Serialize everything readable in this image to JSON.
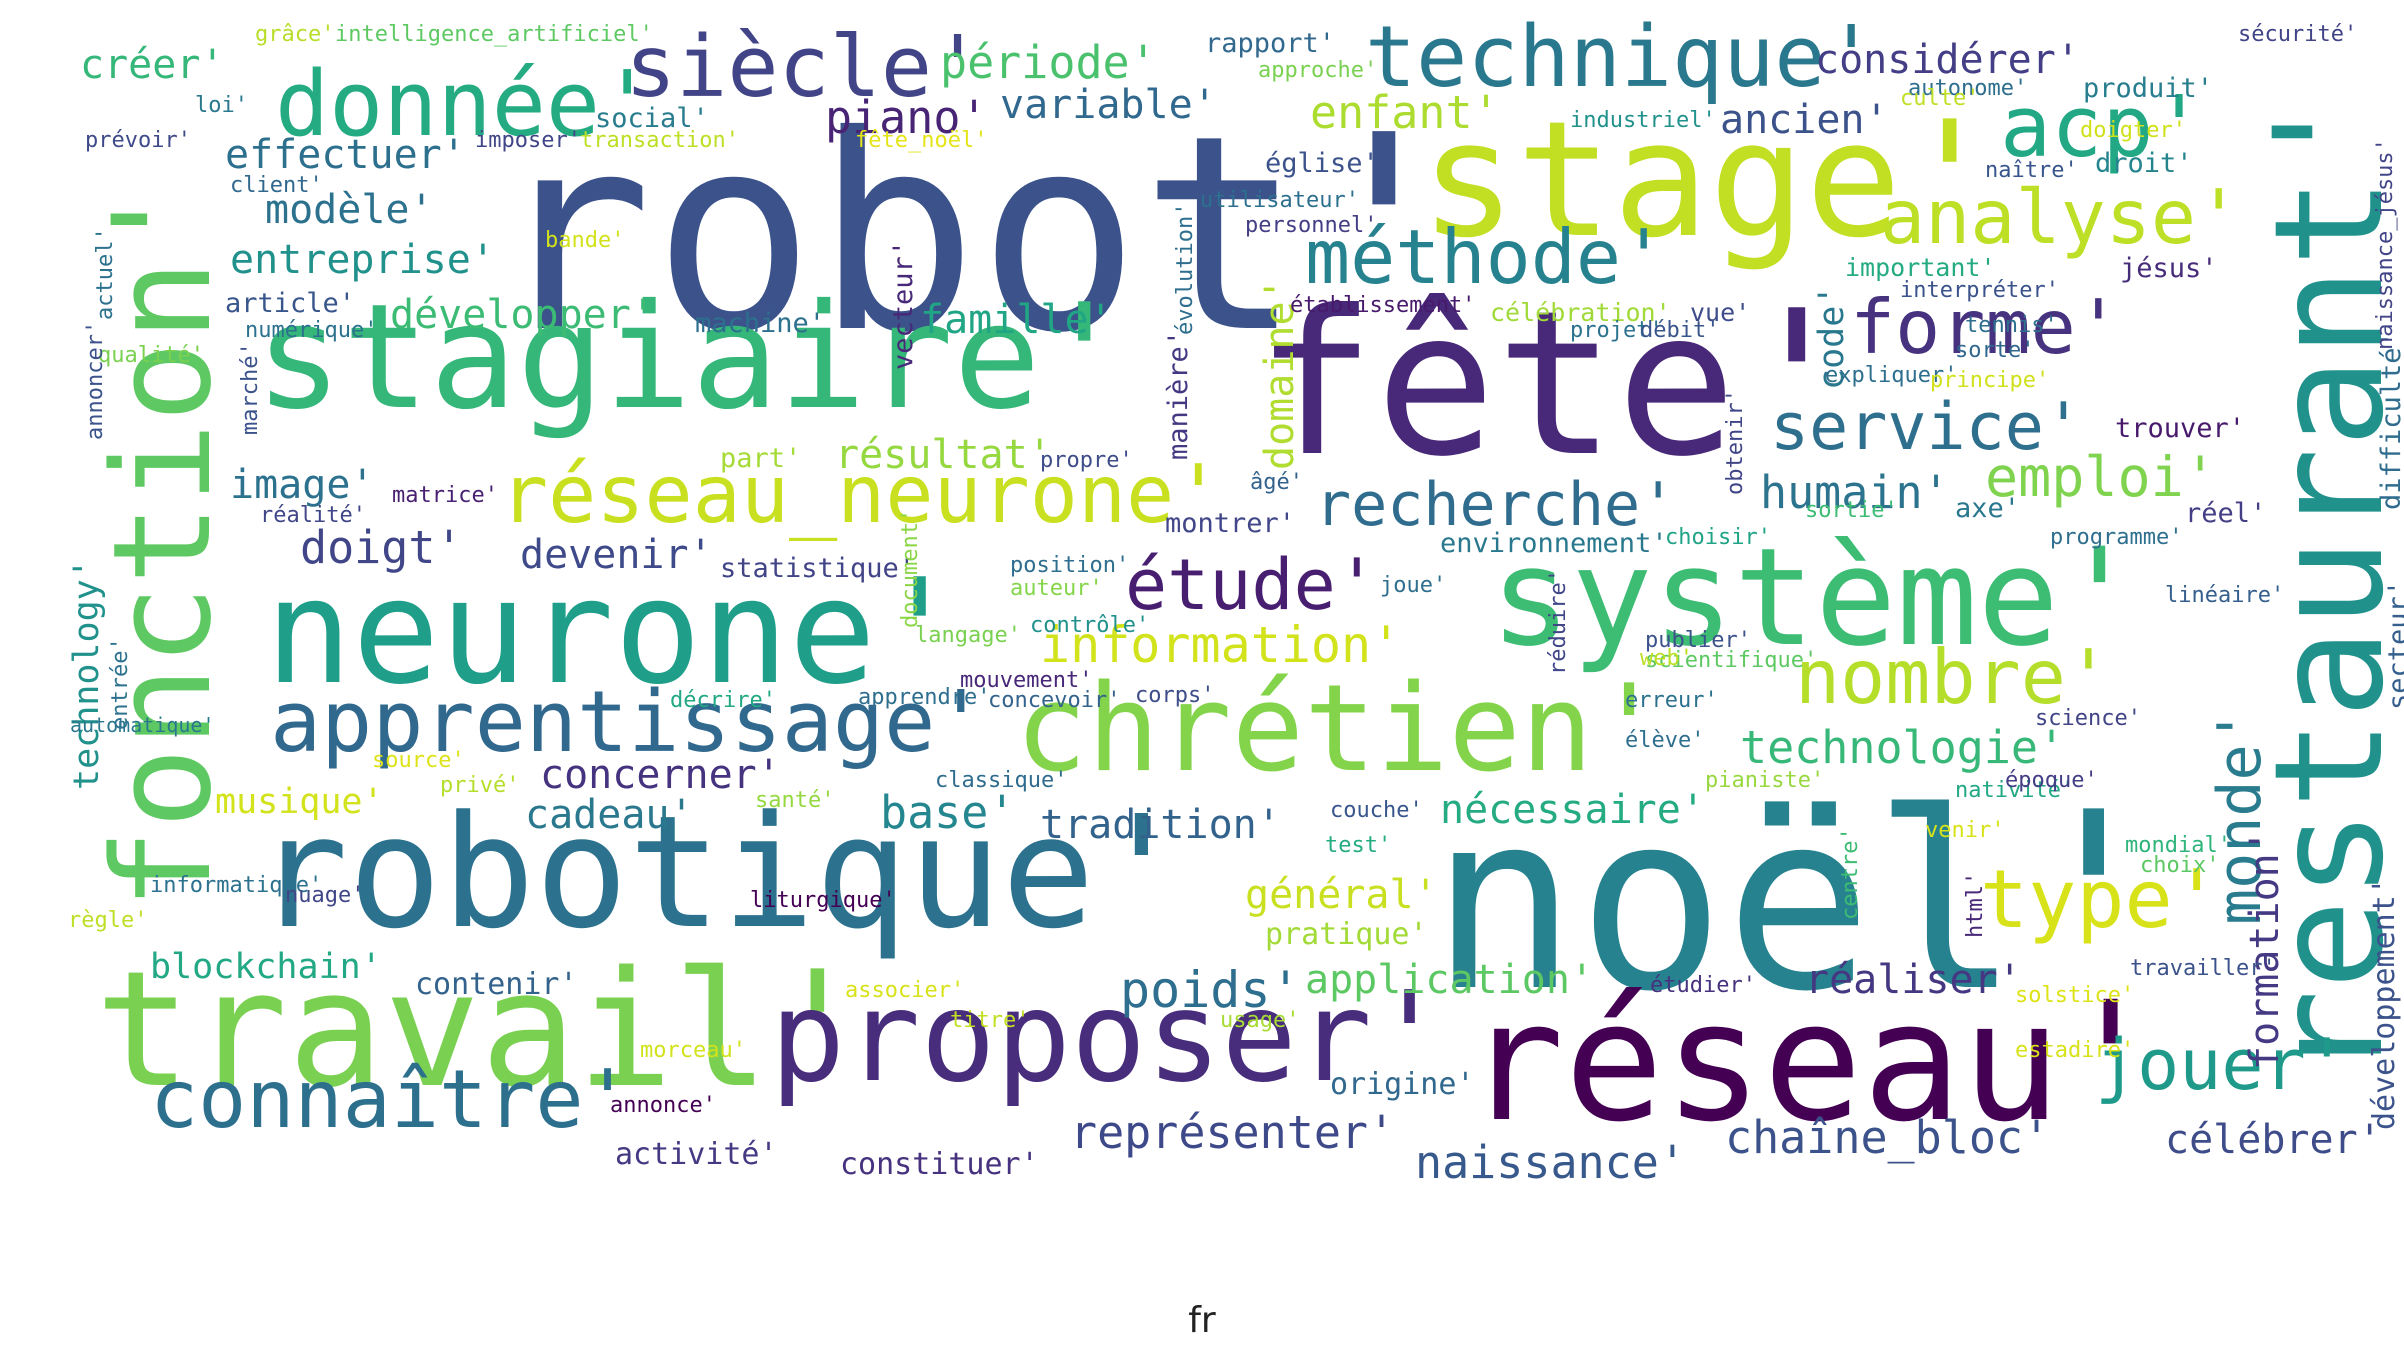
{
  "caption": "fr",
  "words": [
    {
      "text": "robot'",
      "color": "#3b528b"
    },
    {
      "text": "stage'",
      "color": "#c2df23"
    },
    {
      "text": "restaurant'",
      "color": "#21918c"
    },
    {
      "text": "fonction'",
      "color": "#5ec962"
    },
    {
      "text": "stagiaire'",
      "color": "#35b779"
    },
    {
      "text": "fête'",
      "color": "#482878"
    },
    {
      "text": "neurone'",
      "color": "#1f9e89"
    },
    {
      "text": "système'",
      "color": "#3dbc74"
    },
    {
      "text": "robotique'",
      "color": "#2c728e"
    },
    {
      "text": "noël'",
      "color": "#26828e"
    },
    {
      "text": "travail'",
      "color": "#7ad151"
    },
    {
      "text": "réseau'",
      "color": "#440154"
    },
    {
      "text": "proposer'",
      "color": "#472d7b"
    },
    {
      "text": "chrétien'",
      "color": "#84d44b"
    },
    {
      "text": "apprentissage'",
      "color": "#31688e"
    },
    {
      "text": "réseau_neurone'",
      "color": "#c8e020"
    },
    {
      "text": "donnée'",
      "color": "#25ab82"
    },
    {
      "text": "siècle'",
      "color": "#414487"
    },
    {
      "text": "technique'",
      "color": "#2a788e"
    },
    {
      "text": "acp'",
      "color": "#22a884"
    },
    {
      "text": "analyse'",
      "color": "#bddf26"
    },
    {
      "text": "méthode'",
      "color": "#26828e"
    },
    {
      "text": "forme'",
      "color": "#46327e"
    },
    {
      "text": "service'",
      "color": "#2e6f8e"
    },
    {
      "text": "recherche'",
      "color": "#2f6c8e"
    },
    {
      "text": "étude'",
      "color": "#481f70"
    },
    {
      "text": "emploi'",
      "color": "#7fd34e"
    },
    {
      "text": "humain'",
      "color": "#2c738e"
    },
    {
      "text": "nombre'",
      "color": "#b5de2b"
    },
    {
      "text": "technologie'",
      "color": "#37b878"
    },
    {
      "text": "information'",
      "color": "#d2e21b"
    },
    {
      "text": "monde'",
      "color": "#297b8e"
    },
    {
      "text": "type'",
      "color": "#d8e219"
    },
    {
      "text": "jouer'",
      "color": "#1f9a8a"
    },
    {
      "text": "connaître'",
      "color": "#2d708e"
    },
    {
      "text": "représenter'",
      "color": "#3e4989"
    },
    {
      "text": "naissance'",
      "color": "#38598c"
    },
    {
      "text": "chaîne_bloc'",
      "color": "#3b528b"
    },
    {
      "text": "célébrer'",
      "color": "#3e4c8a"
    },
    {
      "text": "poids'",
      "color": "#2e6e8e"
    },
    {
      "text": "application'",
      "color": "#5cc863"
    },
    {
      "text": "réaliser'",
      "color": "#453781"
    },
    {
      "text": "formation'",
      "color": "#443983"
    },
    {
      "text": "développement'",
      "color": "#3b528b"
    },
    {
      "text": "domaine'",
      "color": "#b0dd2f"
    },
    {
      "text": "code'",
      "color": "#2a788e"
    },
    {
      "text": "créer'",
      "color": "#35b779"
    },
    {
      "text": "piano'",
      "color": "#482475"
    },
    {
      "text": "période'",
      "color": "#4ac16d"
    },
    {
      "text": "variable'",
      "color": "#31688e"
    },
    {
      "text": "considérer'",
      "color": "#433e85"
    },
    {
      "text": "enfant'",
      "color": "#addc30"
    },
    {
      "text": "ancien'",
      "color": "#3b528b"
    },
    {
      "text": "effectuer'",
      "color": "#2d708e"
    },
    {
      "text": "modèle'",
      "color": "#2c728e"
    },
    {
      "text": "entreprise'",
      "color": "#21918c"
    },
    {
      "text": "développer'",
      "color": "#3cbb75"
    },
    {
      "text": "famille'",
      "color": "#21a685"
    },
    {
      "text": "image'",
      "color": "#2c728e"
    },
    {
      "text": "résultat'",
      "color": "#95d840"
    },
    {
      "text": "doigt'",
      "color": "#404688"
    },
    {
      "text": "devenir'",
      "color": "#3e4a89"
    },
    {
      "text": "musique'",
      "color": "#d2e21b"
    },
    {
      "text": "concerner'",
      "color": "#46337f"
    },
    {
      "text": "cadeau'",
      "color": "#2a788e"
    },
    {
      "text": "base'",
      "color": "#24868e"
    },
    {
      "text": "tradition'",
      "color": "#33638d"
    },
    {
      "text": "nécessaire'",
      "color": "#25ab82"
    },
    {
      "text": "général'",
      "color": "#c8e020"
    },
    {
      "text": "pratique'",
      "color": "#a2da37"
    },
    {
      "text": "blockchain'",
      "color": "#22a884"
    },
    {
      "text": "contenir'",
      "color": "#33638d"
    },
    {
      "text": "activité'",
      "color": "#443a83"
    },
    {
      "text": "constituer'",
      "color": "#46327e"
    },
    {
      "text": "origine'",
      "color": "#31688e"
    },
    {
      "text": "technology'",
      "color": "#21918c"
    },
    {
      "text": "machine'",
      "color": "#2d708e"
    },
    {
      "text": "article'",
      "color": "#39568c"
    },
    {
      "text": "statistique'",
      "color": "#414487"
    },
    {
      "text": "montrer'",
      "color": "#404688"
    },
    {
      "text": "environnement'",
      "color": "#2a788e"
    },
    {
      "text": "manière'",
      "color": "#453781"
    },
    {
      "text": "vecteur'",
      "color": "#482878"
    },
    {
      "text": "trouver'",
      "color": "#481a6c"
    },
    {
      "text": "axe'",
      "color": "#2a788e"
    },
    {
      "text": "réel'",
      "color": "#433e85"
    },
    {
      "text": "produit'",
      "color": "#287d8e"
    },
    {
      "text": "droit'",
      "color": "#25858e"
    },
    {
      "text": "jésus'",
      "color": "#472c7a"
    },
    {
      "text": "difficulté'",
      "color": "#2f6c8e"
    },
    {
      "text": "secteur'",
      "color": "#355f8d"
    },
    {
      "text": "social'",
      "color": "#287c8e"
    },
    {
      "text": "industriel'",
      "color": "#21918c"
    },
    {
      "text": "rapport'",
      "color": "#31688e"
    },
    {
      "text": "approche'",
      "color": "#7ad151"
    },
    {
      "text": "grâce'",
      "color": "#b8de29"
    },
    {
      "text": "intelligence_artificiel'",
      "color": "#5ec962"
    },
    {
      "text": "sécurité'",
      "color": "#414487"
    },
    {
      "text": "autonome'",
      "color": "#2e6e8e"
    },
    {
      "text": "culte'",
      "color": "#c0df25"
    },
    {
      "text": "naître'",
      "color": "#39568c"
    },
    {
      "text": "doigter'",
      "color": "#d0e11c"
    },
    {
      "text": "naissance_jésus'",
      "color": "#414487"
    },
    {
      "text": "loi'",
      "color": "#2a788e"
    },
    {
      "text": "prévoir'",
      "color": "#3e4a89"
    },
    {
      "text": "imposer'",
      "color": "#404688"
    },
    {
      "text": "transaction'",
      "color": "#bddf26"
    },
    {
      "text": "fête_noël'",
      "color": "#e5e419"
    },
    {
      "text": "église'",
      "color": "#3b528b"
    },
    {
      "text": "client'",
      "color": "#31688e"
    },
    {
      "text": "utilisateur'",
      "color": "#2d708e"
    },
    {
      "text": "personnel'",
      "color": "#433e85"
    },
    {
      "text": "évolution'",
      "color": "#2e6e8e"
    },
    {
      "text": "important'",
      "color": "#25ab82"
    },
    {
      "text": "interpréter'",
      "color": "#3b528b"
    },
    {
      "text": "bande'",
      "color": "#d2e21b"
    },
    {
      "text": "actuel'",
      "color": "#2c728e"
    },
    {
      "text": "numérique'",
      "color": "#2c728e"
    },
    {
      "text": "qualité'",
      "color": "#7ad151"
    },
    {
      "text": "annoncer'",
      "color": "#3b528b"
    },
    {
      "text": "établissement'",
      "color": "#481a6c"
    },
    {
      "text": "célébration'",
      "color": "#a0da39"
    },
    {
      "text": "vue'",
      "color": "#3e4c8a"
    },
    {
      "text": "projet'",
      "color": "#2c728e"
    },
    {
      "text": "débit'",
      "color": "#39568c"
    },
    {
      "text": "tennis'",
      "color": "#2e6e8e"
    },
    {
      "text": "sorte'",
      "color": "#31688e"
    },
    {
      "text": "expliquer'",
      "color": "#2e6f8e"
    },
    {
      "text": "principe'",
      "color": "#d0e11c"
    },
    {
      "text": "marché'",
      "color": "#3b528b"
    },
    {
      "text": "part'",
      "color": "#a5db36"
    },
    {
      "text": "propre'",
      "color": "#3e4c8a"
    },
    {
      "text": "âgé'",
      "color": "#33638d"
    },
    {
      "text": "obtenir'",
      "color": "#404688"
    },
    {
      "text": "sortie'",
      "color": "#3dbc74"
    },
    {
      "text": "matrice'",
      "color": "#482173"
    },
    {
      "text": "réalité'",
      "color": "#404688"
    },
    {
      "text": "choisir'",
      "color": "#20a386"
    },
    {
      "text": "programme'",
      "color": "#2e6f8e"
    },
    {
      "text": "position'",
      "color": "#2e6e8e"
    },
    {
      "text": "auteur'",
      "color": "#85d54a"
    },
    {
      "text": "joue'",
      "color": "#2e6f8e"
    },
    {
      "text": "contrôle'",
      "color": "#21918c"
    },
    {
      "text": "publier'",
      "color": "#3b528b"
    },
    {
      "text": "langage'",
      "color": "#7ad151"
    },
    {
      "text": "scientifique'",
      "color": "#5ec962"
    },
    {
      "text": "web'",
      "color": "#bddf26"
    },
    {
      "text": "mouvement'",
      "color": "#482878"
    },
    {
      "text": "linéaire'",
      "color": "#355f8d"
    },
    {
      "text": "réduire'",
      "color": "#404688"
    },
    {
      "text": "document'",
      "color": "#8bd646"
    },
    {
      "text": "automatique'",
      "color": "#2a788e"
    },
    {
      "text": "entrée'",
      "color": "#2c728e"
    },
    {
      "text": "décrire'",
      "color": "#22a884"
    },
    {
      "text": "apprendre'",
      "color": "#2e6e8e"
    },
    {
      "text": "concevoir'",
      "color": "#33638d"
    },
    {
      "text": "corps'",
      "color": "#3e4c8a"
    },
    {
      "text": "erreur'",
      "color": "#2c728e"
    },
    {
      "text": "science'",
      "color": "#414487"
    },
    {
      "text": "source'",
      "color": "#dde318"
    },
    {
      "text": "privé'",
      "color": "#b5de2b"
    },
    {
      "text": "santé'",
      "color": "#95d840"
    },
    {
      "text": "classique'",
      "color": "#2f6c8e"
    },
    {
      "text": "élève'",
      "color": "#2e6e8e"
    },
    {
      "text": "pianiste'",
      "color": "#98d83e"
    },
    {
      "text": "nativité'",
      "color": "#22a884"
    },
    {
      "text": "époque'",
      "color": "#433e85"
    },
    {
      "text": "couche'",
      "color": "#39568c"
    },
    {
      "text": "test'",
      "color": "#25ab82"
    },
    {
      "text": "venir'",
      "color": "#d8e219"
    },
    {
      "text": "mondial'",
      "color": "#2fb47c"
    },
    {
      "text": "choix'",
      "color": "#5cc863"
    },
    {
      "text": "centre'",
      "color": "#3dbc74"
    },
    {
      "text": "html'",
      "color": "#482878"
    },
    {
      "text": "informatique'",
      "color": "#2c728e"
    },
    {
      "text": "nuage'",
      "color": "#404688"
    },
    {
      "text": "règle'",
      "color": "#bddf26"
    },
    {
      "text": "liturgique'",
      "color": "#440154"
    },
    {
      "text": "associer'",
      "color": "#d8e219"
    },
    {
      "text": "étudier'",
      "color": "#46327e"
    },
    {
      "text": "travailler'",
      "color": "#3b528b"
    },
    {
      "text": "solstice'",
      "color": "#dde318"
    },
    {
      "text": "titre'",
      "color": "#c2df23"
    },
    {
      "text": "usage'",
      "color": "#a8db34"
    },
    {
      "text": "estadire'",
      "color": "#d8e219"
    },
    {
      "text": "morceau'",
      "color": "#d2e21b"
    },
    {
      "text": "annonce'",
      "color": "#440154"
    }
  ]
}
